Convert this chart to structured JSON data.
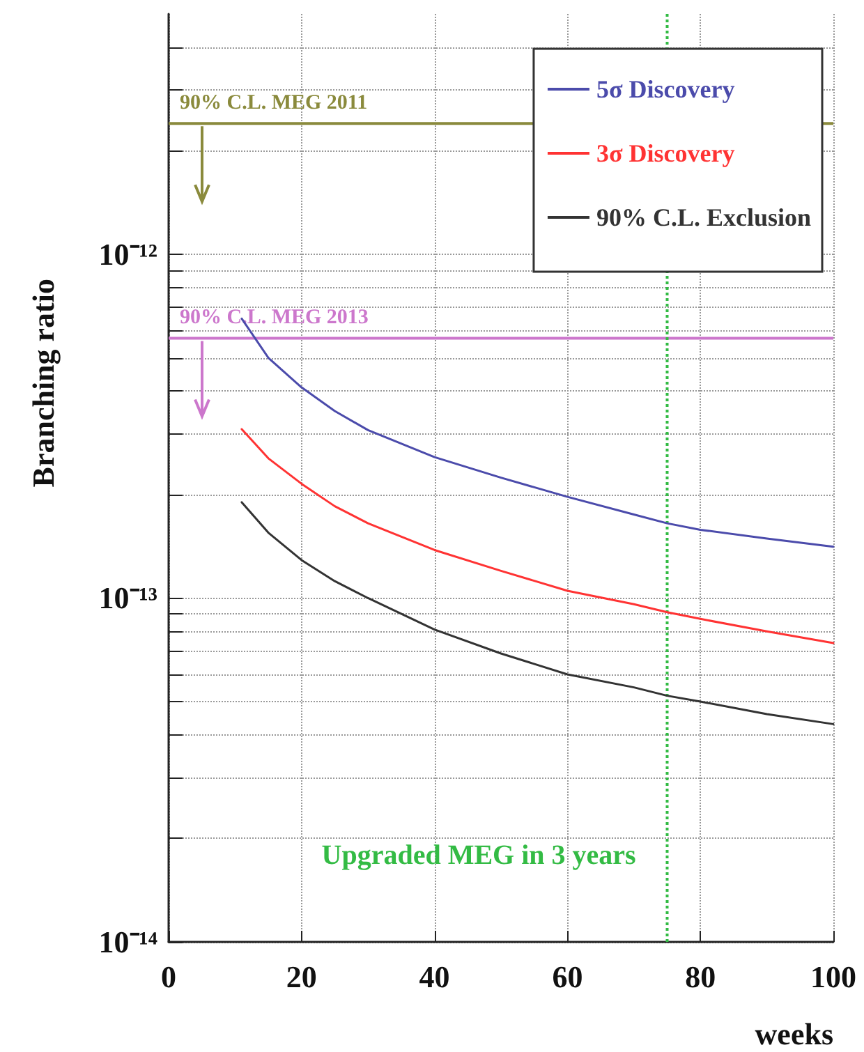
{
  "chart_data": {
    "type": "line",
    "xlabel": "weeks",
    "ylabel": "Branching ratio",
    "x": [
      11,
      15,
      20,
      25,
      30,
      40,
      50,
      60,
      70,
      75,
      80,
      90,
      100
    ],
    "series": [
      {
        "name": "5σ Discovery",
        "color": "#4b4bab",
        "values": [
          6.5e-13,
          5e-13,
          4.1e-13,
          3.5e-13,
          3.08e-13,
          2.57e-13,
          2.24e-13,
          1.97e-13,
          1.75e-13,
          1.65e-13,
          1.58e-13,
          1.49e-13,
          1.41e-13
        ]
      },
      {
        "name": "3σ Discovery",
        "color": "#ff3333",
        "values": [
          3.1e-13,
          2.55e-13,
          2.15e-13,
          1.85e-13,
          1.65e-13,
          1.38e-13,
          1.2e-13,
          1.05e-13,
          9.6e-14,
          9.1e-14,
          8.7e-14,
          8e-14,
          7.4e-14
        ]
      },
      {
        "name": "90% C.L. Exclusion",
        "color": "#333333",
        "values": [
          1.9e-13,
          1.55e-13,
          1.29e-13,
          1.12e-13,
          1e-13,
          8.1e-14,
          6.9e-14,
          6e-14,
          5.5e-14,
          5.2e-14,
          5e-14,
          4.6e-14,
          4.3e-14
        ]
      }
    ],
    "xlim": [
      0,
      100
    ],
    "xticks": [
      0,
      20,
      40,
      60,
      80,
      100
    ],
    "log": "y",
    "ylim": [
      1e-14,
      5e-12
    ],
    "yticks": [
      {
        "value": 1e-14,
        "label": "10⁻¹⁴"
      },
      {
        "value": 2e-14,
        "label": null
      },
      {
        "value": 3e-14,
        "label": null
      },
      {
        "value": 4e-14,
        "label": null
      },
      {
        "value": 5e-14,
        "label": null
      },
      {
        "value": 6e-14,
        "label": null
      },
      {
        "value": 7e-14,
        "label": null
      },
      {
        "value": 8e-14,
        "label": null
      },
      {
        "value": 9e-14,
        "label": null
      },
      {
        "value": 1e-13,
        "label": "10⁻¹³"
      },
      {
        "value": 2e-13,
        "label": null
      },
      {
        "value": 3e-13,
        "label": null
      },
      {
        "value": 4e-13,
        "label": null
      },
      {
        "value": 5e-13,
        "label": null
      },
      {
        "value": 6e-13,
        "label": null
      },
      {
        "value": 7e-13,
        "label": null
      },
      {
        "value": 8e-13,
        "label": null
      },
      {
        "value": 9e-13,
        "label": null
      },
      {
        "value": 1e-12,
        "label": "10⁻¹²"
      },
      {
        "value": 2e-12,
        "label": null
      },
      {
        "value": 3e-12,
        "label": null
      },
      {
        "value": 4e-12,
        "label": null
      }
    ],
    "ref_lines": [
      {
        "axis": "y",
        "value": 2.4e-12,
        "label": "90% C.L. MEG 2011",
        "color": "#8a8a3c",
        "line_style": "solid"
      },
      {
        "axis": "y",
        "value": 5.7e-13,
        "label": "90% C.L. MEG 2013",
        "color": "#cc77cc",
        "line_style": "solid"
      },
      {
        "axis": "x",
        "value": 75,
        "label": "Upgraded MEG in 3 years",
        "color": "#33bb44",
        "line_style": "dotted"
      }
    ],
    "grid": true,
    "legend": "top right",
    "marker": "none",
    "line_style": "solid"
  }
}
